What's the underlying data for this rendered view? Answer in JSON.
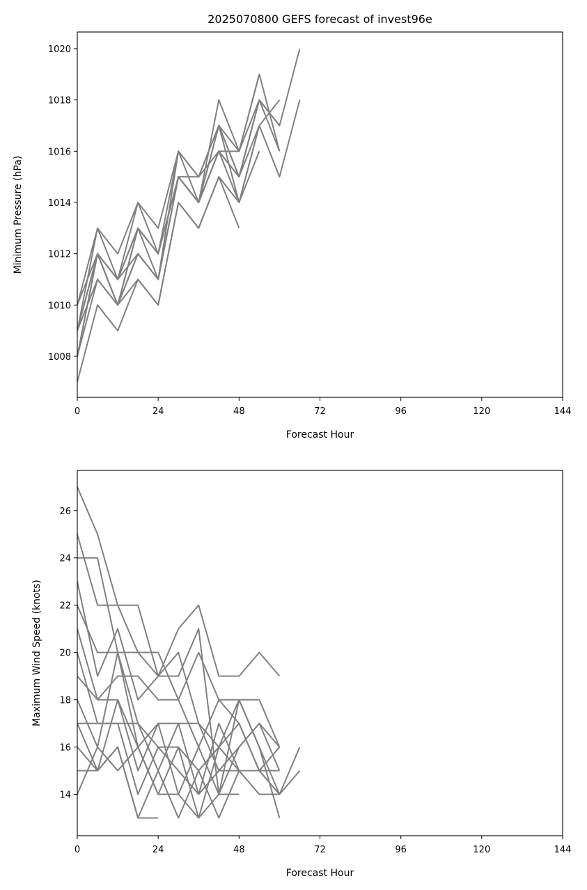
{
  "chart_data": [
    {
      "type": "line",
      "title": "2025070800 GEFS forecast of invest96e",
      "xlabel": "Forecast Hour",
      "ylabel": "Minimum Pressure (hPa)",
      "xlim": [
        0,
        144
      ],
      "ylim": [
        1006.4,
        1020.65
      ],
      "xticks": [
        0,
        24,
        48,
        72,
        96,
        120,
        144
      ],
      "yticks": [
        1008,
        1010,
        1012,
        1014,
        1016,
        1018,
        1020
      ],
      "grid": false,
      "line_color": "#808080",
      "series": [
        {
          "x": [
            0,
            6,
            12,
            18,
            24,
            30,
            36,
            42,
            48,
            54,
            60,
            66
          ],
          "values": [
            1009,
            1012,
            1010,
            1012,
            1011,
            1015,
            1014,
            1016,
            1015,
            1018,
            1017,
            1020
          ]
        },
        {
          "x": [
            0,
            6,
            12,
            18,
            24,
            30,
            36,
            42,
            48,
            54,
            60,
            66
          ],
          "values": [
            1008,
            1012,
            1011,
            1013,
            1012,
            1015,
            1014,
            1016,
            1015,
            1017,
            1015,
            1018
          ]
        },
        {
          "x": [
            0,
            6,
            12,
            18,
            24,
            30,
            36,
            42,
            48,
            54,
            60
          ],
          "values": [
            1010,
            1013,
            1012,
            1014,
            1013,
            1016,
            1015,
            1017,
            1016,
            1019,
            1016
          ]
        },
        {
          "x": [
            0,
            6,
            12,
            18,
            24,
            30,
            36,
            42,
            48,
            54,
            60
          ],
          "values": [
            1009,
            1013,
            1011,
            1014,
            1012,
            1016,
            1014,
            1018,
            1016,
            1018,
            1017
          ]
        },
        {
          "x": [
            0,
            6,
            12,
            18,
            24,
            30,
            36,
            42,
            48,
            54,
            60
          ],
          "values": [
            1008,
            1012,
            1010,
            1013,
            1011,
            1015,
            1014,
            1017,
            1015,
            1018,
            1016
          ]
        },
        {
          "x": [
            0,
            6,
            12,
            18,
            24,
            30,
            36,
            42,
            48,
            54,
            60
          ],
          "values": [
            1009,
            1011,
            1010,
            1012,
            1011,
            1015,
            1014,
            1016,
            1014,
            1017,
            1018
          ]
        },
        {
          "x": [
            0,
            6,
            12,
            18,
            24,
            30,
            36,
            42,
            48,
            54
          ],
          "values": [
            1008,
            1011,
            1010,
            1011,
            1010,
            1014,
            1013,
            1015,
            1014,
            1017
          ]
        },
        {
          "x": [
            0,
            6,
            12,
            18,
            24,
            30,
            36,
            42,
            48,
            54
          ],
          "values": [
            1010,
            1012,
            1011,
            1013,
            1012,
            1015,
            1015,
            1017,
            1015,
            1018
          ]
        },
        {
          "x": [
            0,
            6,
            12,
            18,
            24,
            30,
            36,
            42,
            48,
            54
          ],
          "values": [
            1009,
            1012,
            1011,
            1012,
            1011,
            1016,
            1015,
            1016,
            1016,
            1019
          ]
        },
        {
          "x": [
            0,
            6,
            12,
            18,
            24,
            30,
            36,
            42,
            48,
            54
          ],
          "values": [
            1008,
            1012,
            1010,
            1013,
            1012,
            1015,
            1014,
            1017,
            1014,
            1016
          ]
        },
        {
          "x": [
            0,
            6,
            12,
            18,
            24,
            30,
            36,
            42,
            48
          ],
          "values": [
            1007,
            1010,
            1009,
            1011,
            1010,
            1014,
            1013,
            1015,
            1013
          ]
        }
      ]
    },
    {
      "type": "line",
      "title": "",
      "xlabel": "Forecast Hour",
      "ylabel": "Maximum Wind Speed (knots)",
      "xlim": [
        0,
        144
      ],
      "ylim": [
        12.25,
        27.7
      ],
      "xticks": [
        0,
        24,
        48,
        72,
        96,
        120,
        144
      ],
      "yticks": [
        14,
        16,
        18,
        20,
        22,
        24,
        26
      ],
      "grid": false,
      "line_color": "#808080",
      "series": [
        {
          "x": [
            0,
            6,
            12,
            18,
            24,
            30,
            36,
            42,
            48,
            54,
            60
          ],
          "values": [
            27,
            25,
            22,
            22,
            19,
            21,
            22,
            19,
            19,
            20,
            19
          ]
        },
        {
          "x": [
            0,
            6,
            12,
            18,
            24,
            30,
            36,
            42,
            48,
            54,
            60
          ],
          "values": [
            24,
            24,
            20,
            20,
            19,
            19,
            21,
            14,
            18,
            18,
            16
          ]
        },
        {
          "x": [
            0,
            6,
            12,
            18,
            24,
            30,
            36,
            42,
            48,
            54,
            60
          ],
          "values": [
            25,
            22,
            22,
            20,
            20,
            18,
            20,
            18,
            18,
            16,
            13
          ]
        },
        {
          "x": [
            0,
            6,
            12,
            18,
            24,
            30,
            36,
            42,
            48,
            54,
            60
          ],
          "values": [
            23,
            19,
            21,
            18,
            19,
            20,
            17,
            16,
            17,
            15,
            14
          ]
        },
        {
          "x": [
            0,
            6,
            12,
            18,
            24,
            30,
            36,
            42,
            48,
            54,
            60
          ],
          "values": [
            22,
            20,
            20,
            16,
            17,
            17,
            17,
            15,
            16,
            17,
            15
          ]
        },
        {
          "x": [
            0,
            6,
            12,
            18,
            24,
            30,
            36,
            42,
            48,
            54,
            60
          ],
          "values": [
            21,
            18,
            19,
            19,
            18,
            18,
            16,
            18,
            17,
            15,
            16
          ]
        },
        {
          "x": [
            0,
            6,
            12,
            18,
            24,
            30,
            36,
            42,
            48,
            54,
            60
          ],
          "values": [
            20,
            17,
            17,
            17,
            16,
            16,
            15,
            16,
            18,
            16,
            14
          ]
        },
        {
          "x": [
            0,
            6,
            12,
            18,
            24,
            30,
            36,
            42,
            48,
            54,
            60
          ],
          "values": [
            19,
            18,
            18,
            15,
            17,
            14,
            16,
            14,
            16,
            17,
            16
          ]
        },
        {
          "x": [
            0,
            6,
            12,
            18,
            24,
            30,
            36,
            42,
            48,
            54,
            60
          ],
          "values": [
            18,
            16,
            20,
            17,
            15,
            17,
            14,
            17,
            15,
            15,
            15
          ]
        },
        {
          "x": [
            0,
            6,
            12,
            18,
            24,
            30,
            36,
            42,
            48,
            54,
            60,
            66
          ],
          "values": [
            17,
            17,
            17,
            14,
            16,
            15,
            14,
            15,
            15,
            15,
            14,
            16
          ]
        },
        {
          "x": [
            0,
            6,
            12,
            18,
            24,
            30,
            36,
            42,
            48,
            54,
            60,
            66
          ],
          "values": [
            16,
            15,
            18,
            16,
            14,
            16,
            13,
            16,
            15,
            14,
            14,
            15
          ]
        },
        {
          "x": [
            0,
            6,
            12,
            18,
            24,
            30,
            36,
            42,
            48
          ],
          "values": [
            15,
            15,
            16,
            13,
            15,
            13,
            15,
            13,
            15
          ]
        },
        {
          "x": [
            0,
            6,
            12,
            18,
            24,
            30,
            36,
            42,
            48
          ],
          "values": [
            14,
            16,
            15,
            16,
            14,
            14,
            13,
            14,
            14
          ]
        },
        {
          "x": [
            0,
            6,
            12,
            18,
            24
          ],
          "values": [
            17,
            15,
            16,
            13,
            13
          ]
        }
      ]
    }
  ]
}
